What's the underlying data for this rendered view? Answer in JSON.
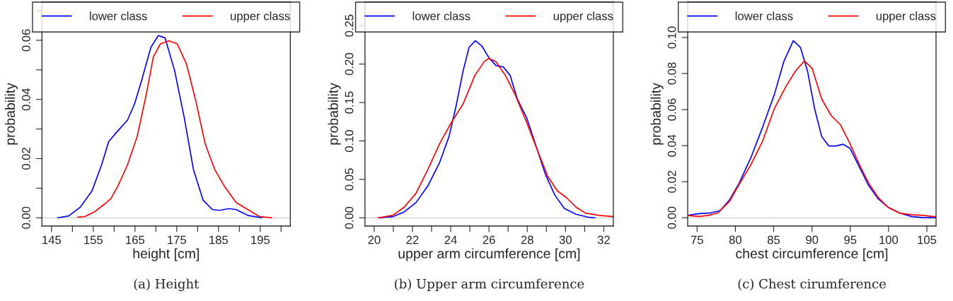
{
  "chart_data": [
    {
      "type": "line",
      "title": "(a) Height",
      "xlabel": "height [cm]",
      "ylabel": "probability",
      "legend": "top",
      "grid": false,
      "xlim": [
        142.7,
        202.2
      ],
      "xticks": [
        145,
        {
          "value": 150,
          "label": null
        },
        155,
        {
          "value": 160,
          "label": null
        },
        165,
        {
          "value": 170,
          "label": null
        },
        175,
        {
          "value": 180,
          "label": null
        },
        185,
        {
          "value": 190,
          "label": null
        },
        195,
        {
          "value": 200,
          "label": null
        }
      ],
      "ylim": [
        -0.0028,
        0.0729
      ],
      "yticks": [
        {
          "value": 0,
          "label": "0.00"
        },
        {
          "value": 0.01,
          "label": null
        },
        {
          "value": 0.02,
          "label": "0.02"
        },
        {
          "value": 0.03,
          "label": null
        },
        {
          "value": 0.04,
          "label": "0.04"
        },
        {
          "value": 0.05,
          "label": null
        },
        {
          "value": 0.06,
          "label": "0.06"
        },
        {
          "value": 0.07,
          "label": null
        }
      ],
      "ref_lines": [
        {
          "axis": "y",
          "value": 0,
          "color": "#bebebe"
        }
      ],
      "series": [
        {
          "name": "lower class",
          "color": "#0000ff",
          "x": [
            146.5,
            149.1,
            151.9,
            154.7,
            157.0,
            158.7,
            160.9,
            163.2,
            164.9,
            166.6,
            168.8,
            170.6,
            172.2,
            174.5,
            176.8,
            179.0,
            181.3,
            183.5,
            185.2,
            187.5,
            189.2,
            192.0,
            195.4
          ],
          "values": [
            0,
            0.0006,
            0.0036,
            0.0091,
            0.0179,
            0.0258,
            0.0294,
            0.033,
            0.0385,
            0.0465,
            0.0576,
            0.0616,
            0.0608,
            0.0497,
            0.0338,
            0.0163,
            0.006,
            0.0028,
            0.0025,
            0.0031,
            0.0028,
            0.0008,
            0
          ]
        },
        {
          "name": "upper class",
          "color": "#ff0000",
          "x": [
            151.3,
            153.0,
            155.3,
            157.5,
            159.2,
            160.9,
            163.2,
            165.5,
            167.7,
            169.4,
            171.1,
            173.1,
            175.1,
            177.3,
            179.6,
            181.8,
            184.1,
            186.4,
            189.2,
            192.0,
            194.8,
            197.7
          ],
          "values": [
            0.0002,
            0.0004,
            0.002,
            0.0044,
            0.0064,
            0.0107,
            0.0179,
            0.0274,
            0.0417,
            0.0544,
            0.0588,
            0.0598,
            0.0588,
            0.0521,
            0.0393,
            0.025,
            0.0163,
            0.0107,
            0.0052,
            0.0028,
            0.0004,
            0
          ]
        }
      ]
    },
    {
      "type": "line",
      "title": "(b) Upper arm circumference",
      "xlabel": "upper arm circumference [cm]",
      "ylabel": "probability",
      "legend": "top",
      "grid": false,
      "xlim": [
        19.52,
        32.5
      ],
      "xticks": [
        20,
        {
          "value": 21,
          "label": null
        },
        22,
        {
          "value": 23,
          "label": null
        },
        24,
        {
          "value": 25,
          "label": null
        },
        26,
        {
          "value": 27,
          "label": null
        },
        28,
        {
          "value": 29,
          "label": null
        },
        30,
        {
          "value": 31,
          "label": null
        },
        32
      ],
      "ylim": [
        -0.0107,
        0.2806
      ],
      "yticks": [
        {
          "value": 0,
          "label": "0.00"
        },
        {
          "value": 0.05,
          "label": "0.05"
        },
        {
          "value": 0.1,
          "label": "0.10"
        },
        {
          "value": 0.15,
          "label": "0.15"
        },
        {
          "value": 0.2,
          "label": "0.20"
        },
        {
          "value": 0.25,
          "label": "0.25"
        }
      ],
      "ref_lines": [
        {
          "axis": "y",
          "value": 0,
          "color": "#bebebe"
        }
      ],
      "series": [
        {
          "name": "lower class",
          "color": "#0000ff",
          "x": [
            20.22,
            20.96,
            21.57,
            22.19,
            22.8,
            23.42,
            23.91,
            24.28,
            24.65,
            24.96,
            25.29,
            25.63,
            26.0,
            26.37,
            26.74,
            27.11,
            27.48,
            27.97,
            28.46,
            28.95,
            29.45,
            29.94,
            30.55,
            31.17,
            31.54
          ],
          "values": [
            0,
            0.0015,
            0.0077,
            0.0199,
            0.0413,
            0.0719,
            0.1056,
            0.1453,
            0.1913,
            0.2218,
            0.2304,
            0.2234,
            0.2081,
            0.198,
            0.1964,
            0.1851,
            0.1545,
            0.13,
            0.0933,
            0.0566,
            0.0291,
            0.0122,
            0.0046,
            0.0009,
            0
          ]
        },
        {
          "name": "upper class",
          "color": "#ff0000",
          "x": [
            20.22,
            20.96,
            21.57,
            22.19,
            22.8,
            23.42,
            24.03,
            24.65,
            25.26,
            25.76,
            26.0,
            26.37,
            26.86,
            27.36,
            27.97,
            28.59,
            29.08,
            29.57,
            30.06,
            30.55,
            31.05,
            31.78,
            32.5
          ],
          "values": [
            0,
            0.0031,
            0.0138,
            0.0321,
            0.0627,
            0.0964,
            0.1239,
            0.1484,
            0.1851,
            0.2035,
            0.2075,
            0.2029,
            0.1851,
            0.1606,
            0.1239,
            0.0841,
            0.0535,
            0.0352,
            0.026,
            0.0138,
            0.0061,
            0.0031,
            0.0015
          ]
        }
      ]
    },
    {
      "type": "line",
      "title": "(c) Chest cirumference",
      "xlabel": "chest circumference [cm]",
      "ylabel": "probability",
      "legend": "top",
      "grid": false,
      "xlim": [
        73.77,
        106.2
      ],
      "xticks": [
        75,
        80,
        85,
        90,
        95,
        100,
        105
      ],
      "ylim": [
        -0.0046,
        0.1196
      ],
      "yticks": [
        {
          "value": 0,
          "label": "0.00"
        },
        {
          "value": 0.02,
          "label": "0.02"
        },
        {
          "value": 0.04,
          "label": "0.04"
        },
        {
          "value": 0.06,
          "label": "0.06"
        },
        {
          "value": 0.08,
          "label": "0.08"
        },
        {
          "value": 0.1,
          "label": "0.10"
        }
      ],
      "ref_lines": [
        {
          "axis": "y",
          "value": 0,
          "color": "#bebebe"
        }
      ],
      "series": [
        {
          "name": "lower class",
          "color": "#0000ff",
          "x": [
            73.77,
            75.22,
            76.76,
            77.99,
            79.23,
            80.46,
            82.01,
            83.55,
            85.09,
            86.33,
            87.56,
            88.49,
            89.41,
            90.34,
            91.27,
            92.19,
            93.12,
            94.04,
            94.97,
            96.2,
            97.44,
            98.67,
            99.91,
            101.45,
            102.99,
            104.54,
            106.2
          ],
          "values": [
            0.0013,
            0.0023,
            0.0027,
            0.0039,
            0.0098,
            0.0189,
            0.0332,
            0.0502,
            0.0684,
            0.0867,
            0.0982,
            0.0945,
            0.0815,
            0.0606,
            0.045,
            0.0398,
            0.0398,
            0.0408,
            0.0385,
            0.028,
            0.0176,
            0.0104,
            0.0059,
            0.0026,
            0.0007,
            0,
            0
          ]
        },
        {
          "name": "upper class",
          "color": "#ff0000",
          "x": [
            73.77,
            75.22,
            76.45,
            77.69,
            79.23,
            80.46,
            82.01,
            83.55,
            85.09,
            86.63,
            87.87,
            89.01,
            90.03,
            91.27,
            92.5,
            93.73,
            94.97,
            96.2,
            97.44,
            98.67,
            99.91,
            101.45,
            102.99,
            104.54,
            106.2
          ],
          "values": [
            0.0013,
            0.0007,
            0.0013,
            0.0026,
            0.0091,
            0.0183,
            0.0293,
            0.0424,
            0.0606,
            0.073,
            0.0815,
            0.087,
            0.0828,
            0.0658,
            0.0567,
            0.0515,
            0.0411,
            0.0293,
            0.0189,
            0.0111,
            0.0059,
            0.0026,
            0.0017,
            0.0013,
            0.0005
          ]
        }
      ]
    }
  ]
}
